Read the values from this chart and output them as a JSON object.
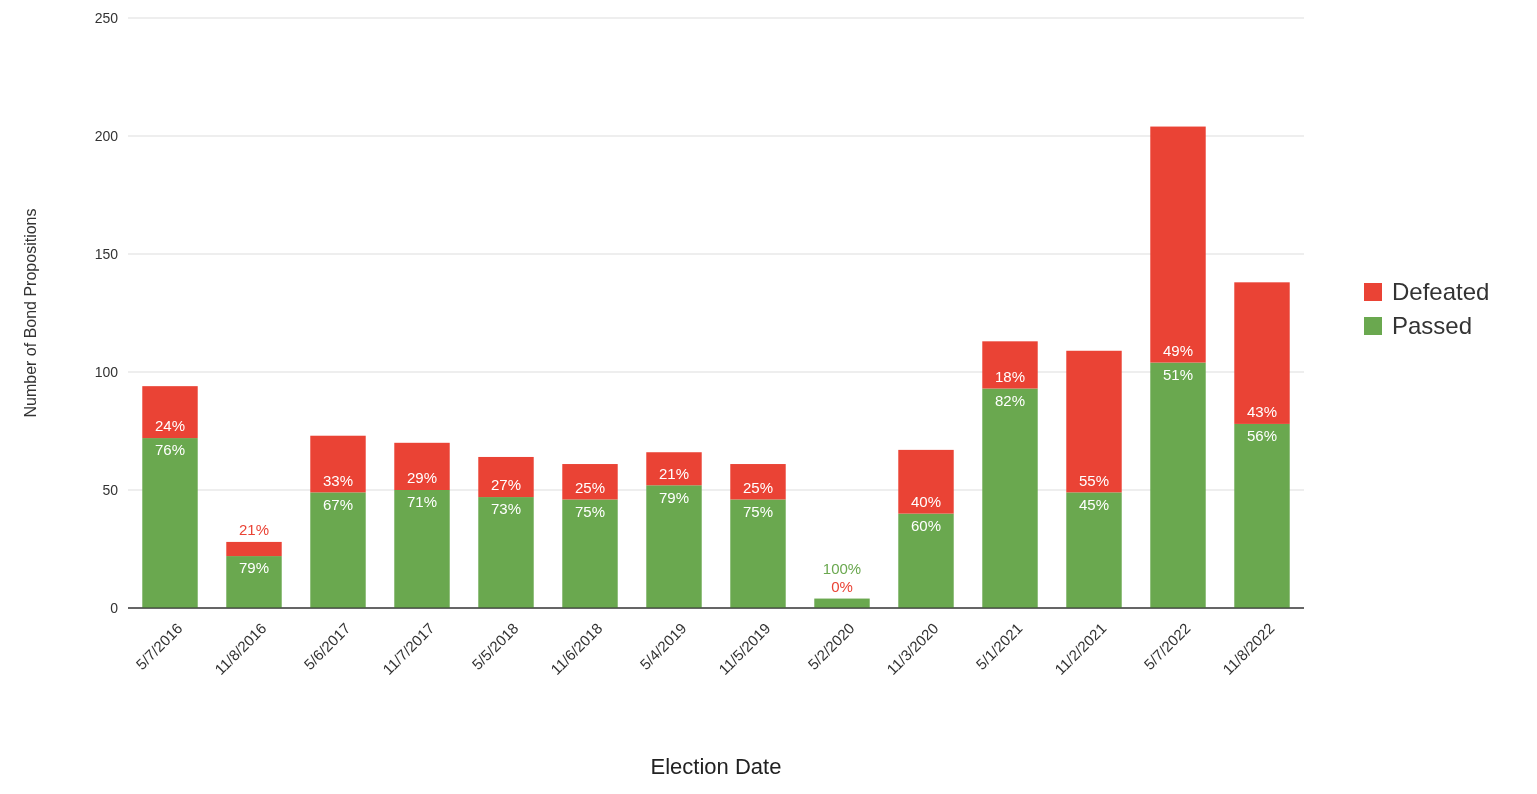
{
  "chart_data": {
    "type": "bar",
    "stacked": true,
    "xlabel": "Election Date",
    "ylabel": "Number of Bond Propositions",
    "categories": [
      "5/7/2016",
      "11/8/2016",
      "5/6/2017",
      "11/7/2017",
      "5/5/2018",
      "11/6/2018",
      "5/4/2019",
      "11/5/2019",
      "5/2/2020",
      "11/3/2020",
      "5/1/2021",
      "11/2/2021",
      "5/7/2022",
      "11/8/2022"
    ],
    "series": [
      {
        "name": "Passed",
        "color": "#6aa84f",
        "values": [
          72,
          22,
          49,
          50,
          47,
          46,
          52,
          46,
          4,
          40,
          93,
          49,
          104,
          78
        ]
      },
      {
        "name": "Defeated",
        "color": "#ea4335",
        "values": [
          22,
          6,
          24,
          20,
          17,
          15,
          14,
          15,
          0,
          27,
          20,
          60,
          100,
          60
        ]
      }
    ],
    "annotations": [
      {
        "text": "76%",
        "x": "5/7/2016",
        "y": 72
      },
      {
        "text": "24%",
        "x": "5/7/2016",
        "y": 72
      },
      {
        "text": "79%",
        "x": "11/8/2016",
        "y": 22
      },
      {
        "text": "21%",
        "x": "11/8/2016",
        "y": 22
      },
      {
        "text": "67%",
        "x": "5/6/2017",
        "y": 49
      },
      {
        "text": "33%",
        "x": "5/6/2017",
        "y": 49
      },
      {
        "text": "71%",
        "x": "11/7/2017",
        "y": 50
      },
      {
        "text": "29%",
        "x": "11/7/2017",
        "y": 50
      },
      {
        "text": "73%",
        "x": "5/5/2018",
        "y": 47
      },
      {
        "text": "27%",
        "x": "5/5/2018",
        "y": 47
      },
      {
        "text": "75%",
        "x": "11/6/2018",
        "y": 46
      },
      {
        "text": "25%",
        "x": "11/6/2018",
        "y": 46
      },
      {
        "text": "79%",
        "x": "5/4/2019",
        "y": 52
      },
      {
        "text": "21%",
        "x": "5/4/2019",
        "y": 52
      },
      {
        "text": "75%",
        "x": "11/5/2019",
        "y": 46
      },
      {
        "text": "25%",
        "x": "11/5/2019",
        "y": 46
      },
      {
        "text": "100%",
        "x": "5/2/2020",
        "y": 4
      },
      {
        "text": "0%",
        "x": "5/2/2020",
        "y": 4
      },
      {
        "text": "60%",
        "x": "11/3/2020",
        "y": 40
      },
      {
        "text": "40%",
        "x": "11/3/2020",
        "y": 40
      },
      {
        "text": "82%",
        "x": "5/1/2021",
        "y": 93
      },
      {
        "text": "18%",
        "x": "5/1/2021",
        "y": 93
      },
      {
        "text": "45%",
        "x": "11/2/2021",
        "y": 49
      },
      {
        "text": "55%",
        "x": "11/2/2021",
        "y": 49
      },
      {
        "text": "51%",
        "x": "5/7/2022",
        "y": 104
      },
      {
        "text": "49%",
        "x": "5/7/2022",
        "y": 104
      },
      {
        "text": "56%",
        "x": "11/8/2022",
        "y": 78
      },
      {
        "text": "43%",
        "x": "11/8/2022",
        "y": 78
      }
    ],
    "ylim": [
      0,
      250
    ],
    "yticks": [
      0,
      50,
      100,
      150,
      200,
      250
    ],
    "grid": "y",
    "legend": "right"
  }
}
